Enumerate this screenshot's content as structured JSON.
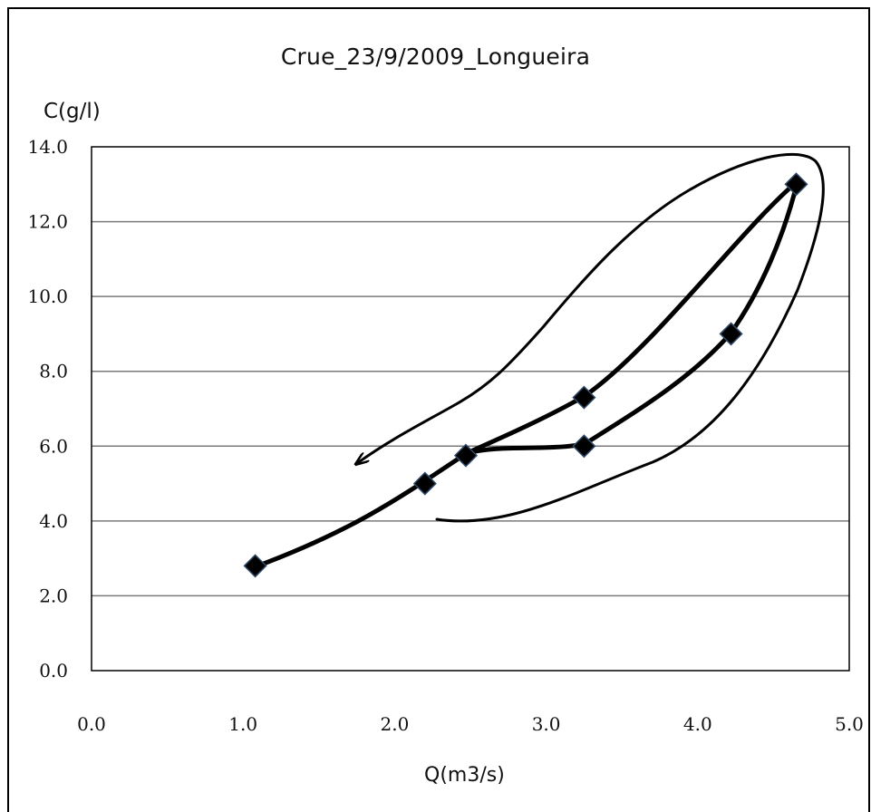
{
  "chart_data": {
    "type": "scatter",
    "title": "Crue_23/9/2009_Longueira",
    "xlabel": "Q(m3/s)",
    "ylabel": "C(g/l)",
    "xlim": [
      0,
      5
    ],
    "ylim": [
      0,
      14
    ],
    "x_ticks": [
      "0.0",
      "1.0",
      "2.0",
      "3.0",
      "4.0",
      "5.0"
    ],
    "y_ticks": [
      "0.0",
      "2.0",
      "4.0",
      "6.0",
      "8.0",
      "10.0",
      "12.0",
      "14.0"
    ],
    "grid": "horizontal",
    "series": [
      {
        "marker": "diamond",
        "color": "#000000",
        "points": [
          {
            "x": 1.08,
            "y": 2.8
          },
          {
            "x": 2.2,
            "y": 5.0
          },
          {
            "x": 2.47,
            "y": 5.75
          },
          {
            "x": 3.25,
            "y": 7.3
          },
          {
            "x": 4.65,
            "y": 13.0
          },
          {
            "x": 4.22,
            "y": 9.0
          },
          {
            "x": 3.25,
            "y": 6.0
          }
        ]
      }
    ]
  }
}
